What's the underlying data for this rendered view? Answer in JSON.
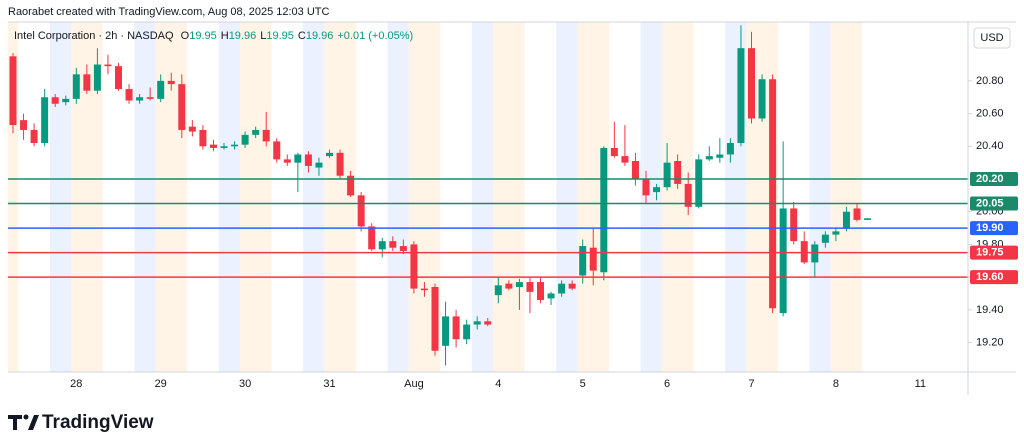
{
  "chart_data": {
    "type": "candlestick",
    "attribution": "Raorabet created with TradingView.com, Aug 08, 2025 12:03 UTC",
    "title": "Intel Corporation · 2h · NASDAQ",
    "legend_values": [
      {
        "name": "O",
        "value": 19.95
      },
      {
        "name": "H",
        "value": 19.96
      },
      {
        "name": "L",
        "value": 19.95
      },
      {
        "name": "C",
        "value": 19.96
      }
    ],
    "change": "+0.01 (+0.05%)",
    "currency": "USD",
    "brand": "TradingView",
    "up_color": "#089981",
    "down_color": "#f23645",
    "categories": [
      null,
      null,
      null,
      null,
      null,
      null,
      "28",
      null,
      null,
      null,
      null,
      null,
      null,
      null,
      "29",
      null,
      null,
      null,
      null,
      null,
      null,
      null,
      "30",
      null,
      null,
      null,
      null,
      null,
      null,
      null,
      "31",
      null,
      null,
      null,
      null,
      null,
      null,
      null,
      "Aug",
      null,
      null,
      null,
      null,
      null,
      null,
      null,
      "4",
      null,
      null,
      null,
      null,
      null,
      null,
      null,
      "5",
      null,
      null,
      null,
      null,
      null,
      null,
      null,
      "6",
      null,
      null,
      null,
      null,
      null,
      null,
      null,
      "7",
      null,
      null,
      null,
      null,
      null,
      null,
      null,
      "8",
      null,
      null,
      null,
      null,
      null,
      null,
      null,
      "11",
      null,
      null,
      null
    ],
    "open": [
      20.95,
      20.56,
      20.5,
      20.42,
      20.7,
      20.67,
      20.69,
      20.84,
      20.74,
      20.9,
      20.89,
      20.75,
      20.68,
      20.7,
      20.69,
      20.8,
      20.78,
      20.52,
      20.5,
      20.41,
      20.39,
      20.4,
      20.41,
      20.47,
      20.5,
      20.43,
      20.32,
      20.3,
      20.35,
      20.27,
      20.34,
      20.36,
      20.22,
      20.1,
      19.91,
      19.77,
      19.82,
      19.79,
      19.8,
      19.53,
      19.54,
      19.18,
      19.36,
      19.22,
      19.31,
      19.33,
      19.49,
      19.56,
      19.54,
      19.57,
      19.57,
      19.47,
      19.5,
      19.56,
      19.61,
      19.78,
      19.63,
      20.39,
      20.34,
      20.31,
      20.2,
      20.12,
      20.15,
      20.31,
      20.17,
      20.03,
      20.32,
      20.33,
      20.35,
      20.42,
      21.0,
      20.57,
      20.81,
      19.38,
      20.02,
      19.82,
      19.69,
      19.81,
      19.86,
      19.9,
      20.02,
      19.95,
      null,
      null,
      null,
      null,
      null,
      null,
      null,
      null
    ],
    "high": [
      20.97,
      20.6,
      20.54,
      20.75,
      20.72,
      20.71,
      20.88,
      20.9,
      21.0,
      20.96,
      20.91,
      20.78,
      20.72,
      20.76,
      20.84,
      20.85,
      20.84,
      20.56,
      20.53,
      20.44,
      20.42,
      20.43,
      20.49,
      20.52,
      20.61,
      20.45,
      20.35,
      20.36,
      20.37,
      20.33,
      20.38,
      20.38,
      20.25,
      20.12,
      19.93,
      19.84,
      19.85,
      19.83,
      19.82,
      19.57,
      19.56,
      19.45,
      19.4,
      19.34,
      19.36,
      19.35,
      19.6,
      19.58,
      19.59,
      19.6,
      19.6,
      19.51,
      19.58,
      19.58,
      19.83,
      19.9,
      20.4,
      20.55,
      20.53,
      20.36,
      20.25,
      20.17,
      20.42,
      20.35,
      20.24,
      20.35,
      20.4,
      20.45,
      20.45,
      21.14,
      21.1,
      20.84,
      20.84,
      20.43,
      20.06,
      19.88,
      19.82,
      19.88,
      19.9,
      20.03,
      20.05,
      19.96,
      null,
      null,
      null,
      null,
      null,
      null,
      null,
      null
    ],
    "low": [
      20.48,
      20.44,
      20.4,
      20.4,
      20.64,
      20.65,
      20.66,
      20.72,
      20.72,
      20.84,
      20.74,
      20.66,
      20.66,
      20.68,
      20.67,
      20.74,
      20.45,
      20.46,
      20.38,
      20.37,
      20.38,
      20.38,
      20.39,
      20.45,
      20.4,
      20.3,
      20.28,
      20.12,
      20.24,
      20.22,
      20.33,
      20.2,
      20.09,
      19.88,
      19.76,
      19.72,
      19.76,
      19.74,
      19.5,
      19.48,
      19.12,
      19.06,
      19.17,
      19.19,
      19.28,
      19.3,
      19.44,
      19.52,
      19.4,
      19.38,
      19.44,
      19.43,
      19.48,
      19.52,
      19.56,
      19.55,
      19.58,
      20.33,
      20.28,
      20.16,
      20.05,
      20.07,
      20.13,
      20.14,
      19.98,
      20.02,
      20.31,
      20.3,
      20.3,
      20.4,
      20.54,
      20.55,
      19.38,
      19.36,
      19.8,
      19.68,
      19.6,
      19.78,
      19.82,
      19.88,
      19.94,
      19.95,
      null,
      null,
      null,
      null,
      null,
      null,
      null,
      null
    ],
    "close": [
      20.53,
      20.5,
      20.42,
      20.7,
      20.66,
      20.69,
      20.84,
      20.74,
      20.9,
      20.89,
      20.75,
      20.68,
      20.7,
      20.69,
      20.8,
      20.78,
      20.5,
      20.49,
      20.4,
      20.39,
      20.4,
      20.41,
      20.47,
      20.5,
      20.43,
      20.32,
      20.3,
      20.35,
      20.28,
      20.3,
      20.36,
      20.22,
      20.1,
      19.91,
      19.77,
      19.82,
      19.78,
      19.76,
      19.53,
      19.52,
      19.15,
      19.36,
      19.22,
      19.31,
      19.33,
      19.31,
      19.55,
      19.53,
      19.57,
      19.51,
      19.46,
      19.5,
      19.56,
      19.53,
      19.79,
      19.64,
      20.39,
      20.34,
      20.3,
      20.2,
      20.1,
      20.15,
      20.3,
      20.17,
      20.03,
      20.32,
      20.34,
      20.35,
      20.42,
      21.0,
      20.57,
      20.81,
      19.41,
      20.02,
      19.82,
      19.69,
      19.8,
      19.86,
      19.88,
      20.0,
      19.95,
      19.96,
      null,
      null,
      null,
      null,
      null,
      null,
      null,
      null
    ],
    "levels": [
      {
        "value": 20.2,
        "label": "20.20",
        "color": "#1b8a6b"
      },
      {
        "value": 20.05,
        "label": "20.05",
        "color": "#1b8a6b"
      },
      {
        "value": 19.9,
        "label": "19.90",
        "color": "#2962ff"
      },
      {
        "value": 19.75,
        "label": "19.75",
        "color": "#f23645"
      },
      {
        "value": 19.6,
        "label": "19.60",
        "color": "#f23645"
      }
    ],
    "ylim": [
      19.02,
      21.16
    ],
    "yticks": [
      {
        "value": 19.2,
        "label": "19.20"
      },
      {
        "value": 19.4,
        "label": "19.40"
      },
      {
        "value": 19.6,
        "label": "19.60"
      },
      {
        "value": 19.8,
        "label": "19.80"
      },
      {
        "value": 20,
        "label": "20.00"
      },
      {
        "value": 20.2,
        "label": "20.20"
      },
      {
        "value": 20.4,
        "label": "20.40"
      },
      {
        "value": 20.6,
        "label": "20.60"
      },
      {
        "value": 20.8,
        "label": "20.80"
      }
    ]
  }
}
